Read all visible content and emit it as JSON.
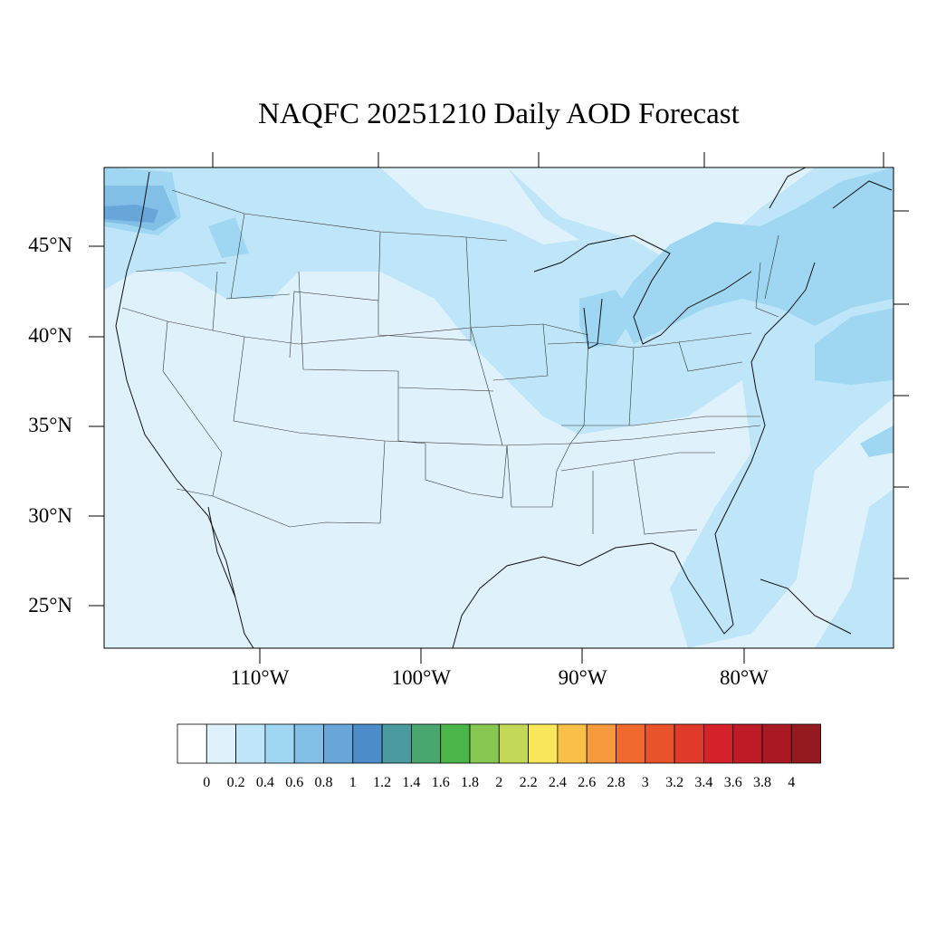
{
  "title": "NAQFC 20251210 Daily AOD Forecast",
  "lat_labels": [
    {
      "value": 45,
      "text": "45°N"
    },
    {
      "value": 40,
      "text": "40°N"
    },
    {
      "value": 35,
      "text": "35°N"
    },
    {
      "value": 30,
      "text": "30°N"
    },
    {
      "value": 25,
      "text": "25°N"
    }
  ],
  "lon_labels": [
    {
      "value": -110,
      "text": "110°W"
    },
    {
      "value": -100,
      "text": "100°W"
    },
    {
      "value": -90,
      "text": "90°W"
    },
    {
      "value": -80,
      "text": "80°W"
    }
  ],
  "colorbar": {
    "labels": [
      "0",
      "0.2",
      "0.4",
      "0.6",
      "0.8",
      "1",
      "1.2",
      "1.4",
      "1.6",
      "1.8",
      "2",
      "2.2",
      "2.4",
      "2.6",
      "2.8",
      "3",
      "3.2",
      "3.4",
      "3.6",
      "3.8",
      "4"
    ],
    "colors": [
      "#ffffff",
      "#dff2fb",
      "#bfe6f8",
      "#9fd7f3",
      "#82bfe6",
      "#68a6d9",
      "#4c8dc9",
      "#4a9aa0",
      "#49a66f",
      "#4bb54a",
      "#86c651",
      "#c4d858",
      "#f8e75a",
      "#f8c048",
      "#f49a3c",
      "#f06a2e",
      "#e9532b",
      "#e03a2a",
      "#d52129",
      "#bf1b27",
      "#a91924",
      "#941a1f"
    ]
  },
  "map_colors": {
    "land_base": "#dff2fb",
    "ocean_base": "#dff2fb",
    "level_0_4": "#bfe6f8",
    "level_0_6": "#9fd7f3",
    "level_0_8": "#82bfe6",
    "level_1": "#68a6d9"
  }
}
